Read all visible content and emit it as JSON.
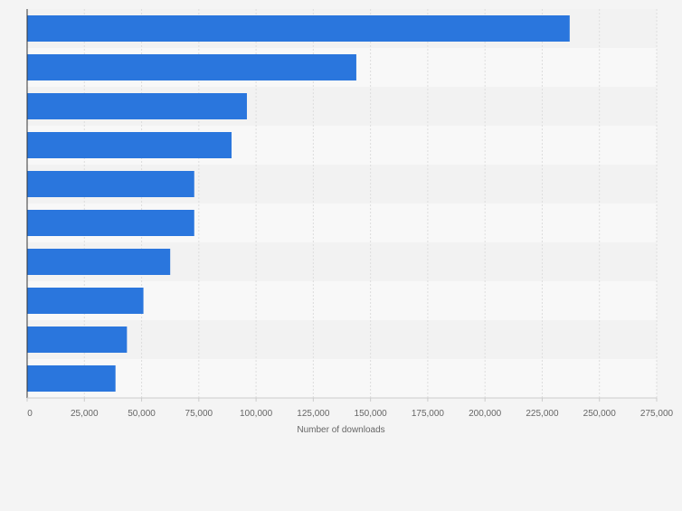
{
  "chart_data": {
    "type": "bar",
    "orientation": "horizontal",
    "title": "",
    "xlabel": "Number of downloads",
    "ylabel": "",
    "xlim": [
      0,
      275000
    ],
    "x_ticks": [
      0,
      25000,
      50000,
      75000,
      100000,
      125000,
      150000,
      175000,
      200000,
      225000,
      250000,
      275000
    ],
    "x_tick_labels": [
      "0",
      "25,000",
      "50,000",
      "75,000",
      "100,000",
      "125,000",
      "150,000",
      "175,000",
      "200,000",
      "225,000",
      "250,000",
      "275,000"
    ],
    "categories": [
      "",
      "",
      "",
      "",
      "",
      "",
      "",
      "",
      "",
      ""
    ],
    "values": [
      237000,
      143800,
      96000,
      89300,
      73000,
      73000,
      62500,
      50800,
      43600,
      38600
    ],
    "grid": true,
    "legend": "none",
    "colors": {
      "bar": "#2a76dd",
      "background": "#f4f4f4",
      "band_light": "#f8f8f8",
      "band_dark": "#f2f2f2",
      "grid": "#dddddd",
      "axis": "#333333",
      "text": "#666666"
    }
  }
}
